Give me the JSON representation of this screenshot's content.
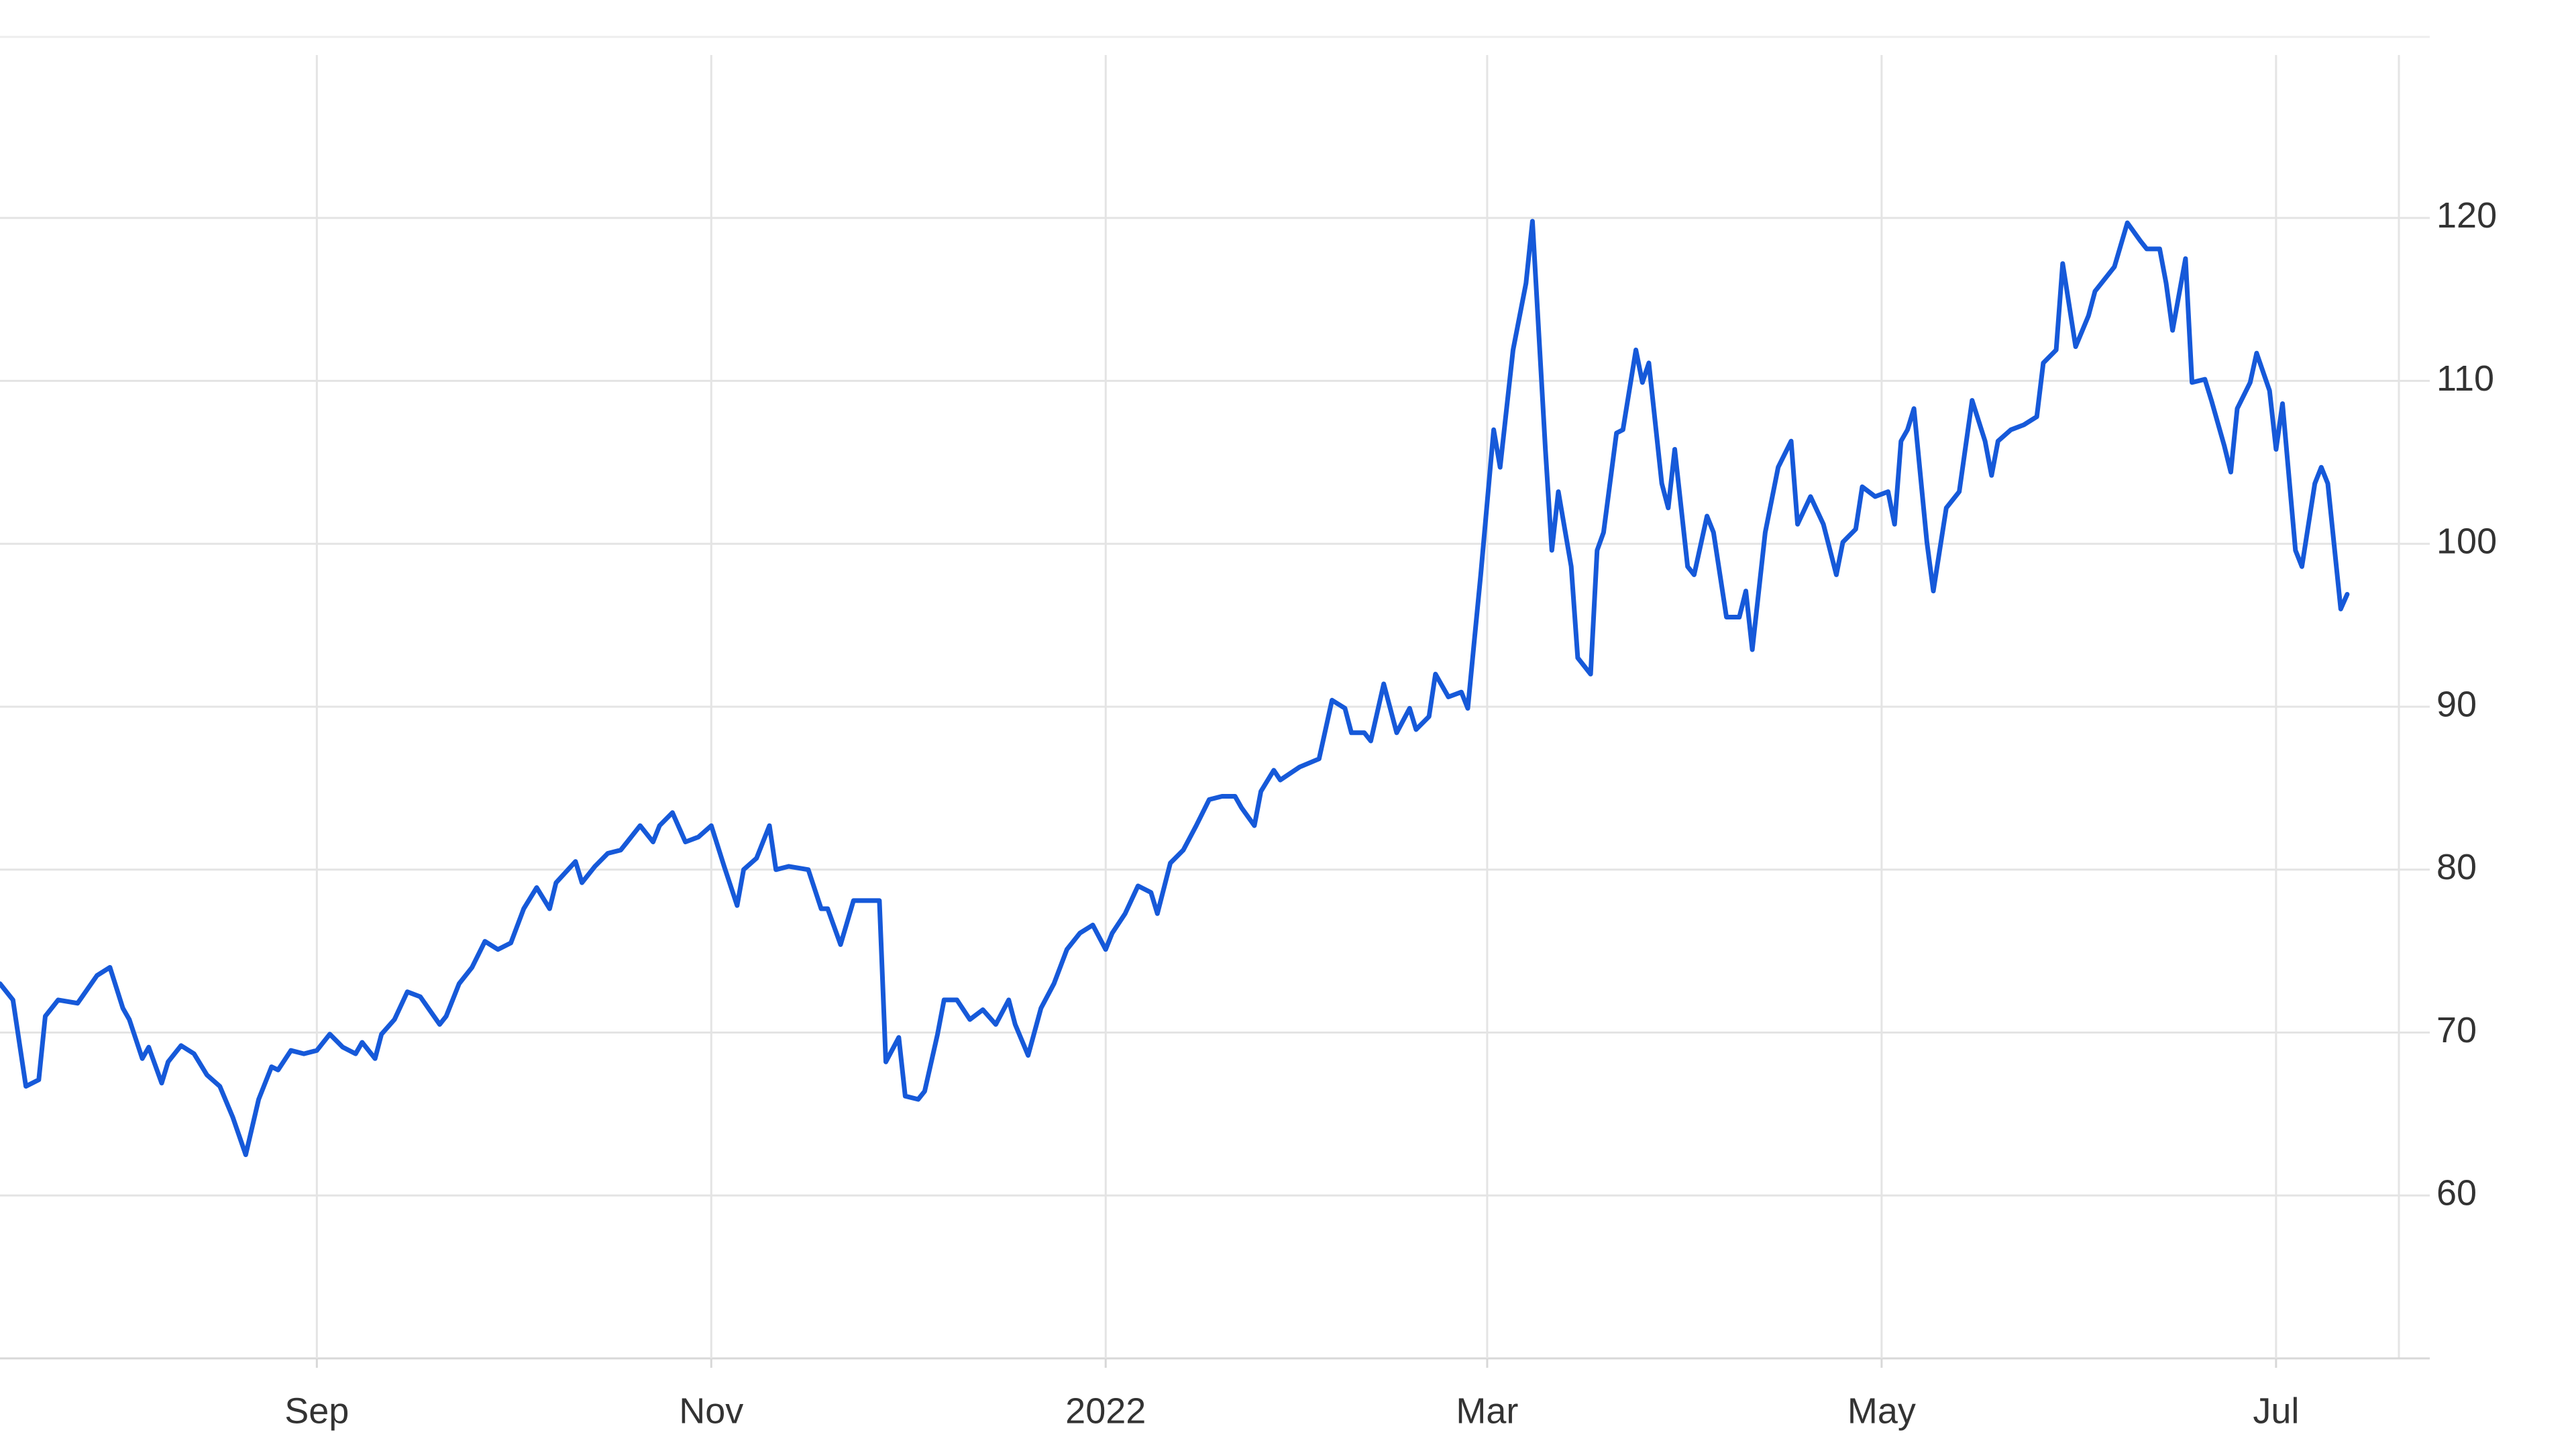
{
  "chart_data": {
    "type": "line",
    "color": "#1659d9",
    "grid": true,
    "xlim": [
      "2021-07-14",
      "2022-07-20"
    ],
    "xticks": [
      {
        "value": "2021-09-01",
        "label": "Sep"
      },
      {
        "value": "2021-11-01",
        "label": "Nov"
      },
      {
        "value": "2022-01-01",
        "label": "2022"
      },
      {
        "value": "2022-03-01",
        "label": "Mar"
      },
      {
        "value": "2022-05-01",
        "label": "May"
      },
      {
        "value": "2022-07-01",
        "label": "Jul"
      }
    ],
    "ylim": [
      50,
      130
    ],
    "yticks": [
      60,
      70,
      80,
      90,
      100,
      110,
      120
    ],
    "x": [
      "2021-07-14",
      "2021-07-16",
      "2021-07-18",
      "2021-07-20",
      "2021-07-21",
      "2021-07-23",
      "2021-07-26",
      "2021-07-29",
      "2021-07-31",
      "2021-08-02",
      "2021-08-03",
      "2021-08-05",
      "2021-08-06",
      "2021-08-08",
      "2021-08-09",
      "2021-08-11",
      "2021-08-13",
      "2021-08-15",
      "2021-08-17",
      "2021-08-19",
      "2021-08-21",
      "2021-08-23",
      "2021-08-25",
      "2021-08-26",
      "2021-08-28",
      "2021-08-30",
      "2021-09-01",
      "2021-09-03",
      "2021-09-05",
      "2021-09-07",
      "2021-09-08",
      "2021-09-10",
      "2021-09-11",
      "2021-09-13",
      "2021-09-15",
      "2021-09-17",
      "2021-09-20",
      "2021-09-21",
      "2021-09-23",
      "2021-09-25",
      "2021-09-27",
      "2021-09-29",
      "2021-10-01",
      "2021-10-03",
      "2021-10-05",
      "2021-10-07",
      "2021-10-08",
      "2021-10-11",
      "2021-10-12",
      "2021-10-14",
      "2021-10-16",
      "2021-10-18",
      "2021-10-19",
      "2021-10-21",
      "2021-10-23",
      "2021-10-24",
      "2021-10-26",
      "2021-10-28",
      "2021-10-30",
      "2021-11-01",
      "2021-11-03",
      "2021-11-05",
      "2021-11-06",
      "2021-11-08",
      "2021-11-10",
      "2021-11-11",
      "2021-11-13",
      "2021-11-16",
      "2021-11-18",
      "2021-11-19",
      "2021-11-21",
      "2021-11-23",
      "2021-11-27",
      "2021-11-28",
      "2021-11-30",
      "2021-12-01",
      "2021-12-03",
      "2021-12-04",
      "2021-12-06",
      "2021-12-07",
      "2021-12-09",
      "2021-12-11",
      "2021-12-13",
      "2021-12-15",
      "2021-12-17",
      "2021-12-18",
      "2021-12-20",
      "2021-12-22",
      "2021-12-24",
      "2021-12-26",
      "2021-12-28",
      "2021-12-30",
      "2022-01-01",
      "2022-01-02",
      "2022-01-04",
      "2022-01-06",
      "2022-01-08",
      "2022-01-09",
      "2022-01-11",
      "2022-01-13",
      "2022-01-15",
      "2022-01-17",
      "2022-01-19",
      "2022-01-21",
      "2022-01-22",
      "2022-01-24",
      "2022-01-25",
      "2022-01-27",
      "2022-01-28",
      "2022-01-31",
      "2022-02-03",
      "2022-02-05",
      "2022-02-07",
      "2022-02-08",
      "2022-02-10",
      "2022-02-11",
      "2022-02-13",
      "2022-02-15",
      "2022-02-17",
      "2022-02-18",
      "2022-02-20",
      "2022-02-21",
      "2022-02-23",
      "2022-02-25",
      "2022-02-26",
      "2022-02-27",
      "2022-02-28",
      "2022-03-02",
      "2022-03-03",
      "2022-03-05",
      "2022-03-07",
      "2022-03-08",
      "2022-03-10",
      "2022-03-11",
      "2022-03-12",
      "2022-03-14",
      "2022-03-15",
      "2022-03-17",
      "2022-03-18",
      "2022-03-19",
      "2022-03-21",
      "2022-03-22",
      "2022-03-24",
      "2022-03-25",
      "2022-03-26",
      "2022-03-28",
      "2022-03-29",
      "2022-03-30",
      "2022-04-01",
      "2022-04-02",
      "2022-04-04",
      "2022-04-05",
      "2022-04-07",
      "2022-04-09",
      "2022-04-10",
      "2022-04-11",
      "2022-04-13",
      "2022-04-15",
      "2022-04-17",
      "2022-04-18",
      "2022-04-20",
      "2022-04-22",
      "2022-04-24",
      "2022-04-25",
      "2022-04-27",
      "2022-04-28",
      "2022-04-30",
      "2022-05-02",
      "2022-05-03",
      "2022-05-04",
      "2022-05-05",
      "2022-05-06",
      "2022-05-08",
      "2022-05-09",
      "2022-05-11",
      "2022-05-13",
      "2022-05-15",
      "2022-05-17",
      "2022-05-18",
      "2022-05-19",
      "2022-05-21",
      "2022-05-23",
      "2022-05-25",
      "2022-05-26",
      "2022-05-28",
      "2022-05-29",
      "2022-05-31",
      "2022-06-02",
      "2022-06-03",
      "2022-06-05",
      "2022-06-06",
      "2022-06-08",
      "2022-06-10",
      "2022-06-11",
      "2022-06-13",
      "2022-06-14",
      "2022-06-15",
      "2022-06-17",
      "2022-06-18",
      "2022-06-20",
      "2022-06-21",
      "2022-06-23",
      "2022-06-24",
      "2022-06-25",
      "2022-06-27",
      "2022-06-28",
      "2022-06-30",
      "2022-07-01",
      "2022-07-02",
      "2022-07-04",
      "2022-07-05",
      "2022-07-07",
      "2022-07-08",
      "2022-07-09",
      "2022-07-11",
      "2022-07-12"
    ],
    "values": [
      73.0,
      72.0,
      66.7,
      67.1,
      71.0,
      72.0,
      71.8,
      73.5,
      74.0,
      71.5,
      70.8,
      68.4,
      69.1,
      66.9,
      68.2,
      69.2,
      68.7,
      67.4,
      66.7,
      64.8,
      62.5,
      65.9,
      67.9,
      67.7,
      68.9,
      68.7,
      68.9,
      69.9,
      69.1,
      68.7,
      69.4,
      68.4,
      69.9,
      70.8,
      72.5,
      72.2,
      70.5,
      71.0,
      73.0,
      74.0,
      75.6,
      75.1,
      75.5,
      77.6,
      78.9,
      77.6,
      79.2,
      80.5,
      79.2,
      80.2,
      81.0,
      81.2,
      81.7,
      82.7,
      81.7,
      82.7,
      83.5,
      81.7,
      82.0,
      82.7,
      80.2,
      77.8,
      80.0,
      80.7,
      82.7,
      80.0,
      80.2,
      80.0,
      77.6,
      77.6,
      75.4,
      78.1,
      78.1,
      68.2,
      69.7,
      66.1,
      65.9,
      66.4,
      69.9,
      72.0,
      72.0,
      70.8,
      71.4,
      70.5,
      72.0,
      70.5,
      68.6,
      71.5,
      73.0,
      75.1,
      76.1,
      76.6,
      75.1,
      76.1,
      77.3,
      79.0,
      78.6,
      77.3,
      80.4,
      81.2,
      82.7,
      84.3,
      84.5,
      84.5,
      83.8,
      82.7,
      84.8,
      86.1,
      85.5,
      86.3,
      86.8,
      90.4,
      89.9,
      88.4,
      88.4,
      87.9,
      91.4,
      88.4,
      89.9,
      88.6,
      89.4,
      92.0,
      90.6,
      90.9,
      89.9,
      94.0,
      98.1,
      107.0,
      104.7,
      111.9,
      116.0,
      119.8,
      105.8,
      99.6,
      103.2,
      98.6,
      93.0,
      92.0,
      99.6,
      100.7,
      106.8,
      107.0,
      111.9,
      109.9,
      111.1,
      103.7,
      102.2,
      105.8,
      98.6,
      98.1,
      101.7,
      100.7,
      95.5,
      95.5,
      97.1,
      93.5,
      100.7,
      104.7,
      106.3,
      101.2,
      102.9,
      101.2,
      98.1,
      100.1,
      100.9,
      103.5,
      102.9,
      103.2,
      101.2,
      106.3,
      107.0,
      108.3,
      100.1,
      97.1,
      102.2,
      103.2,
      108.8,
      106.3,
      104.2,
      106.3,
      107.0,
      107.3,
      107.8,
      111.1,
      111.9,
      117.2,
      112.1,
      114.0,
      115.5,
      116.5,
      117.0,
      119.7,
      118.6,
      118.1,
      118.1,
      116.0,
      113.1,
      117.5,
      109.9,
      110.1,
      108.8,
      106.0,
      104.4,
      108.3,
      109.9,
      111.7,
      109.4,
      105.8,
      108.6,
      99.6,
      98.6,
      103.7,
      104.7,
      103.7,
      96.0,
      96.9
    ]
  }
}
